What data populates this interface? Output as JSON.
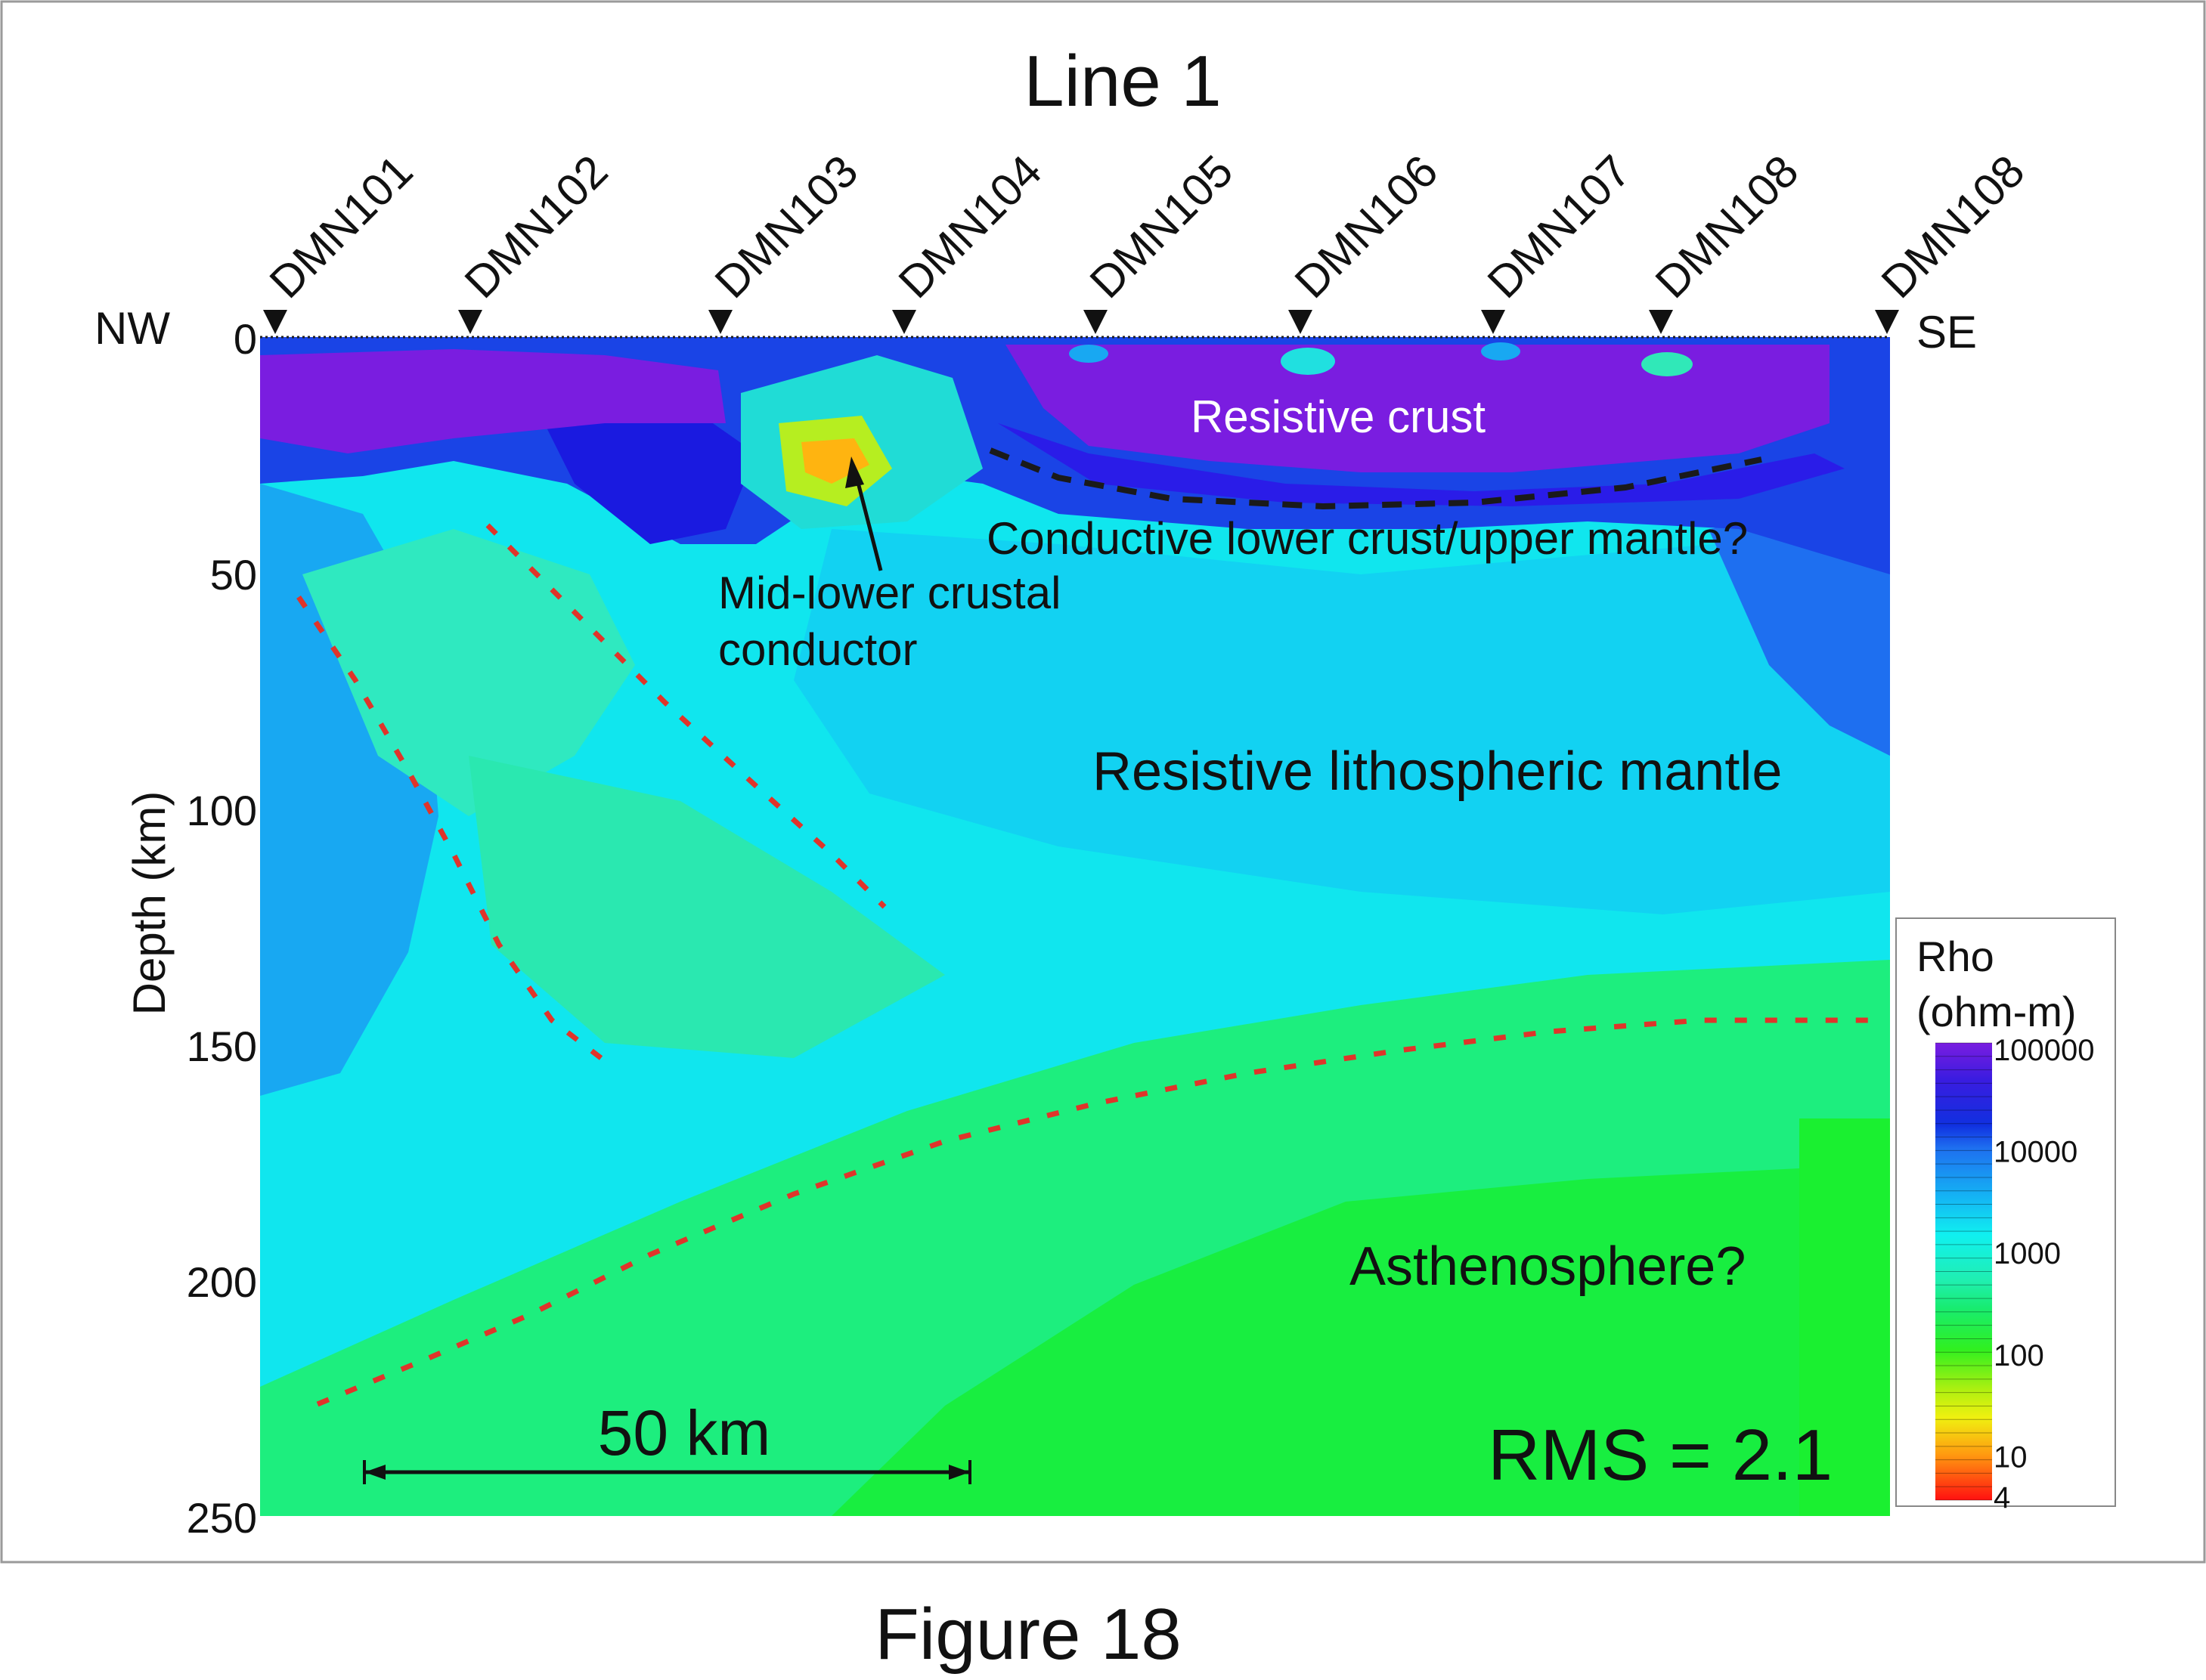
{
  "chart_data": {
    "type": "heatmap",
    "title": "Line 1",
    "ylabel": "Depth (km)",
    "ylim": [
      0,
      250
    ],
    "y_ticks": [
      {
        "value": 0,
        "label": "0"
      },
      {
        "value": 50,
        "label": "50"
      },
      {
        "value": 100,
        "label": "100"
      },
      {
        "value": 150,
        "label": "150"
      },
      {
        "value": 200,
        "label": "200"
      },
      {
        "value": 250,
        "label": "250"
      }
    ],
    "orientation": {
      "left": "NW",
      "right": "SE"
    },
    "stations": [
      "DMN101",
      "DMN102",
      "DMN103",
      "DMN104",
      "DMN105",
      "DMN106",
      "DMN107",
      "DMN108",
      "DMN108"
    ],
    "colorbar": {
      "title_line1": "Rho",
      "title_line2": "(ohm-m)",
      "scale": "log",
      "ticks": [
        {
          "value": 100000,
          "label": "100000"
        },
        {
          "value": 10000,
          "label": "10000"
        },
        {
          "value": 1000,
          "label": "1000"
        },
        {
          "value": 100,
          "label": "100"
        },
        {
          "value": 10,
          "label": "10"
        },
        {
          "value": 4,
          "label": "4"
        }
      ]
    },
    "annotations": {
      "resistive_crust": "Resistive crust",
      "conductive_lower": "Conductive lower crust/upper mantle?",
      "conductor_line1": "Mid-lower crustal",
      "conductor_line2": "conductor",
      "lith_mantle": "Resistive lithospheric mantle",
      "asthenosphere": "Asthenosphere?",
      "scale_bar": "50 km",
      "rms": "RMS = 2.1"
    },
    "grid": false
  },
  "figure_caption": "Figure 18",
  "colors": {
    "boundary_red": "#e0342a",
    "boundary_black": "#1a1a1a",
    "frame": "#9a9a9a"
  }
}
